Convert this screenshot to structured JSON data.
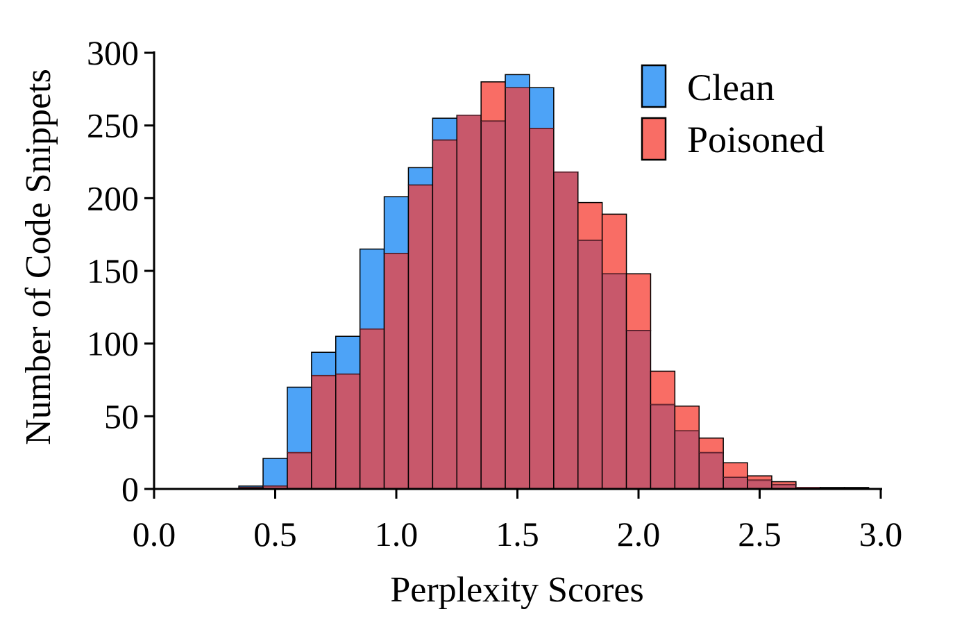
{
  "chart_data": {
    "type": "bar",
    "title": "",
    "xlabel": "Perplexity Scores",
    "ylabel": "Number of Code Snippets",
    "xlim": [
      0.0,
      3.0
    ],
    "ylim": [
      0,
      300
    ],
    "xticks": [
      "0.0",
      "0.5",
      "1.0",
      "1.5",
      "2.0",
      "2.5",
      "3.0"
    ],
    "yticks": [
      "0",
      "50",
      "100",
      "150",
      "200",
      "250",
      "300"
    ],
    "bin_width": 0.1,
    "bin_starts": [
      0.35,
      0.45,
      0.55,
      0.65,
      0.75,
      0.85,
      0.95,
      1.05,
      1.15,
      1.25,
      1.35,
      1.45,
      1.55,
      1.65,
      1.75,
      1.85,
      1.95,
      2.05,
      2.15,
      2.25,
      2.35,
      2.45,
      2.55,
      2.65,
      2.75,
      2.85
    ],
    "series": [
      {
        "name": "Clean",
        "color": "#4da3f7",
        "values": [
          2,
          21,
          70,
          94,
          105,
          165,
          201,
          221,
          255,
          257,
          253,
          285,
          276,
          218,
          171,
          148,
          109,
          58,
          40,
          25,
          8,
          6,
          3,
          1,
          1,
          1
        ]
      },
      {
        "name": "Poisoned",
        "color": "#f96d65",
        "values": [
          1,
          2,
          25,
          78,
          79,
          110,
          162,
          209,
          240,
          257,
          280,
          276,
          248,
          218,
          197,
          189,
          148,
          81,
          57,
          35,
          18,
          9,
          5,
          1,
          0,
          0
        ]
      }
    ],
    "overlap_color": "#c8586b",
    "legend_placement": "top-right",
    "grid": false
  }
}
